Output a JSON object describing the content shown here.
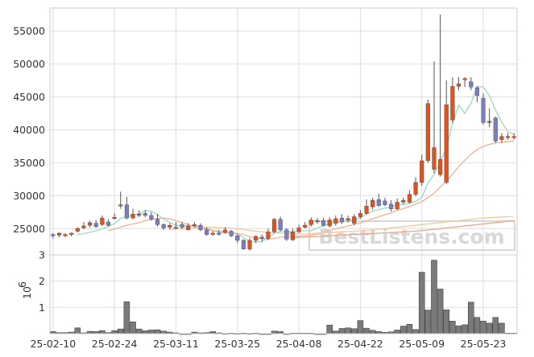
{
  "chart_data": {
    "type": "candlestick",
    "title": "",
    "watermark": "BestListens.com",
    "x_dates": [
      "25-02-10",
      "25-02-11",
      "25-02-12",
      "25-02-13",
      "25-02-14",
      "25-02-17",
      "25-02-18",
      "25-02-19",
      "25-02-20",
      "25-02-21",
      "25-02-24",
      "25-02-25",
      "25-02-26",
      "25-02-27",
      "25-02-28",
      "25-03-03",
      "25-03-04",
      "25-03-05",
      "25-03-06",
      "25-03-07",
      "25-03-10",
      "25-03-11",
      "25-03-12",
      "25-03-13",
      "25-03-14",
      "25-03-17",
      "25-03-18",
      "25-03-19",
      "25-03-20",
      "25-03-21",
      "25-03-24",
      "25-03-25",
      "25-03-26",
      "25-03-27",
      "25-03-28",
      "25-03-31",
      "25-04-01",
      "25-04-02",
      "25-04-03",
      "25-04-04",
      "25-04-07",
      "25-04-08",
      "25-04-09",
      "25-04-10",
      "25-04-11",
      "25-04-14",
      "25-04-15",
      "25-04-16",
      "25-04-17",
      "25-04-18",
      "25-04-21",
      "25-04-22",
      "25-04-23",
      "25-04-24",
      "25-04-25",
      "25-04-28",
      "25-04-29",
      "25-04-30",
      "25-05-01",
      "25-05-02",
      "25-05-05",
      "25-05-06",
      "25-05-07",
      "25-05-08",
      "25-05-09",
      "25-05-12",
      "25-05-13",
      "25-05-14",
      "25-05-15",
      "25-05-16",
      "25-05-19",
      "25-05-20",
      "25-05-21",
      "25-05-22",
      "25-05-23",
      "25-05-26"
    ],
    "x_tick_labels": [
      "25-02-10",
      "25-02-24",
      "25-03-11",
      "25-03-25",
      "25-04-08",
      "25-04-22",
      "25-05-09",
      "25-05-23"
    ],
    "x_tick_index": [
      0,
      10,
      20,
      30,
      40,
      50,
      60,
      70
    ],
    "price": {
      "open": [
        24100,
        24000,
        23900,
        24100,
        24600,
        25100,
        25500,
        25800,
        25600,
        26000,
        26700,
        28500,
        28600,
        26600,
        27000,
        27300,
        27000,
        26400,
        25600,
        25200,
        25200,
        25600,
        24800,
        25400,
        25500,
        24800,
        24100,
        24300,
        24400,
        24600,
        23900,
        23200,
        21900,
        23200,
        23700,
        23500,
        24500,
        26400,
        24800,
        23300,
        24500,
        25200,
        25600,
        26100,
        26200,
        25400,
        25800,
        26600,
        26300,
        25800,
        26800,
        27300,
        28300,
        29400,
        29200,
        28700,
        28000,
        29000,
        29000,
        30200,
        32000,
        35300,
        34000,
        33200,
        32000,
        41500,
        46600,
        47600,
        47300,
        46400,
        44800,
        41100,
        41800,
        38500,
        39000,
        39000
      ],
      "close": [
        23900,
        24300,
        24100,
        24300,
        25000,
        25400,
        25900,
        25300,
        26600,
        25500,
        26700,
        28600,
        26600,
        27200,
        27200,
        27000,
        26400,
        25600,
        25100,
        25500,
        25200,
        25200,
        25400,
        25600,
        24800,
        24100,
        24300,
        24200,
        24800,
        23900,
        23200,
        21900,
        23200,
        23800,
        23500,
        24500,
        26400,
        24800,
        23400,
        24500,
        25100,
        25500,
        26300,
        26200,
        25500,
        26300,
        26500,
        26000,
        26500,
        26800,
        27300,
        28400,
        29300,
        28500,
        28600,
        28000,
        29000,
        29300,
        30200,
        32000,
        35300,
        44000,
        37300,
        35500,
        43800,
        46600,
        47000,
        47800,
        46500,
        45200,
        41100,
        41300,
        38300,
        39000,
        39000,
        39000
      ],
      "high": [
        24300,
        24400,
        24300,
        24400,
        25200,
        26000,
        26200,
        26300,
        27000,
        26400,
        27300,
        30600,
        29800,
        28000,
        27800,
        27800,
        27500,
        27200,
        25800,
        25800,
        26000,
        26000,
        25800,
        26000,
        25800,
        25200,
        24600,
        24800,
        25200,
        24800,
        24200,
        23400,
        23600,
        24000,
        24100,
        25000,
        26600,
        26800,
        25100,
        25000,
        25600,
        26000,
        26700,
        26600,
        26600,
        26700,
        27000,
        27200,
        27000,
        27200,
        27800,
        29400,
        29700,
        30300,
        29700,
        29300,
        29600,
        29700,
        30800,
        32800,
        36200,
        44600,
        50400,
        57500,
        47500,
        48000,
        48000,
        48000,
        48000,
        46600,
        45500,
        43300,
        42000,
        39500,
        39500,
        39500
      ],
      "low": [
        23500,
        23700,
        23700,
        23800,
        24400,
        24900,
        25200,
        25100,
        25400,
        25300,
        26400,
        28000,
        26400,
        26400,
        26700,
        26700,
        26200,
        25300,
        24800,
        24800,
        24900,
        24900,
        24700,
        25200,
        24600,
        23900,
        23900,
        23900,
        24200,
        23700,
        22800,
        21800,
        21600,
        22800,
        23000,
        23200,
        24300,
        24600,
        23100,
        23100,
        24300,
        25000,
        25300,
        25700,
        25300,
        25200,
        25400,
        25700,
        25900,
        25500,
        26500,
        27100,
        27900,
        28300,
        28400,
        27600,
        27800,
        28700,
        28800,
        29900,
        31500,
        35000,
        33400,
        32900,
        31800,
        41000,
        46000,
        46500,
        46000,
        44200,
        40800,
        40400,
        38000,
        38000,
        38500,
        38500
      ]
    },
    "moving_averages": [
      {
        "color": "#9ad9c1",
        "values": [
          null,
          null,
          null,
          null,
          24080,
          24220,
          24460,
          24660,
          24980,
          25340,
          25760,
          26540,
          26800,
          27020,
          27260,
          27760,
          27640,
          27080,
          26460,
          25920,
          25480,
          25420,
          25380,
          25400,
          25300,
          25040,
          24700,
          24380,
          24420,
          24380,
          24140,
          23640,
          23040,
          22950,
          23040,
          23620,
          24280,
          24560,
          24540,
          24460,
          24650,
          24660,
          24660,
          25120,
          25420,
          25780,
          26010,
          26020,
          26140,
          26340,
          26640,
          27180,
          27660,
          27860,
          28100,
          28340,
          28560,
          28650,
          28800,
          29140,
          29700,
          31960,
          33240,
          35160,
          37120,
          41040,
          43740,
          42500,
          44040,
          46620,
          46520,
          45220,
          42980,
          41180,
          39720,
          39300
        ]
      },
      {
        "color": "#f2b091",
        "values": [
          null,
          null,
          null,
          null,
          null,
          null,
          null,
          null,
          null,
          24700,
          24900,
          25250,
          25500,
          25700,
          25900,
          26200,
          26400,
          26500,
          26600,
          26500,
          26200,
          25900,
          25600,
          25300,
          25100,
          24900,
          24700,
          24600,
          24500,
          24400,
          24250,
          24050,
          23800,
          23600,
          23450,
          23400,
          23500,
          23700,
          23750,
          23800,
          23850,
          23900,
          24000,
          24150,
          24400,
          24700,
          25000,
          25200,
          25400,
          25600,
          25850,
          26150,
          26500,
          26800,
          27100,
          27400,
          27750,
          28050,
          28350,
          28700,
          29100,
          29700,
          30400,
          31300,
          32200,
          33300,
          34400,
          35400,
          36300,
          37000,
          37500,
          37800,
          38000,
          38100,
          38200,
          38300
        ]
      },
      {
        "color": "#f4c7a1",
        "values": [
          null,
          null,
          null,
          null,
          null,
          null,
          null,
          null,
          null,
          null,
          null,
          null,
          null,
          null,
          null,
          null,
          null,
          null,
          null,
          24900,
          24950,
          25000,
          25050,
          25100,
          25150,
          25200,
          25200,
          25150,
          25100,
          25050,
          24950,
          24850,
          24700,
          24600,
          24500,
          24400,
          24350,
          24300,
          24250,
          24200,
          24200,
          24200,
          24250,
          24300,
          24350,
          24400,
          24450,
          24500,
          24550,
          24600,
          24650,
          24700,
          24800,
          24900,
          25000,
          25100,
          25200,
          25300,
          25400,
          25500,
          25600,
          25700,
          25800,
          25900,
          26000,
          26100,
          26200,
          26300,
          26400,
          26500,
          26600,
          26650,
          26700,
          26750,
          26800,
          26850
        ]
      },
      {
        "color": "#e8a888",
        "values": [
          null,
          null,
          null,
          null,
          null,
          null,
          null,
          null,
          null,
          null,
          null,
          null,
          null,
          null,
          null,
          null,
          null,
          null,
          null,
          null,
          null,
          null,
          null,
          null,
          null,
          null,
          null,
          null,
          null,
          null,
          null,
          null,
          null,
          null,
          null,
          null,
          null,
          null,
          null,
          23600,
          23650,
          23700,
          23750,
          23800,
          23850,
          23900,
          23950,
          24000,
          24050,
          24100,
          24150,
          24200,
          24250,
          24300,
          24350,
          24400,
          24450,
          24500,
          24550,
          24600,
          24700,
          24800,
          24900,
          25000,
          25100,
          25200,
          25300,
          25400,
          25500,
          25600,
          25700,
          25800,
          25900,
          26000,
          26100,
          26200
        ]
      }
    ],
    "volume": {
      "values": [
        0.08,
        0.04,
        0.04,
        0.06,
        0.22,
        0.03,
        0.09,
        0.08,
        0.12,
        0.04,
        0.12,
        0.18,
        1.22,
        0.45,
        0.18,
        0.11,
        0.14,
        0.15,
        0.1,
        0.06,
        0.03,
        0.0,
        0.0,
        0.06,
        0.03,
        0.04,
        0.08,
        0.03,
        0.01,
        0.02,
        0.01,
        0.02,
        0.01,
        0.02,
        0.0,
        0.0,
        0.1,
        0.08,
        0.0,
        0.02,
        0.02,
        0.02,
        0.02,
        0.0,
        0.0,
        0.33,
        0.1,
        0.2,
        0.22,
        0.19,
        0.5,
        0.21,
        0.13,
        0.08,
        0.05,
        0.07,
        0.14,
        0.29,
        0.36,
        0.16,
        2.34,
        0.9,
        2.8,
        1.7,
        0.91,
        0.48,
        0.3,
        0.34,
        1.2,
        0.62,
        0.48,
        0.4,
        0.62,
        0.4,
        0.02,
        0.02
      ],
      "exponent_label": "10",
      "exponent": "6",
      "ylim": [
        0,
        3
      ],
      "ticks": [
        1,
        2,
        3
      ]
    },
    "price_ylim": [
      21000,
      58500
    ],
    "price_ticks": [
      25000,
      30000,
      35000,
      40000,
      45000,
      50000,
      55000
    ],
    "colors": {
      "up": "#e0521f",
      "down": "#7a7ec2",
      "volume": "#7a7a7a",
      "grid": "#dedede"
    },
    "grid": true
  }
}
